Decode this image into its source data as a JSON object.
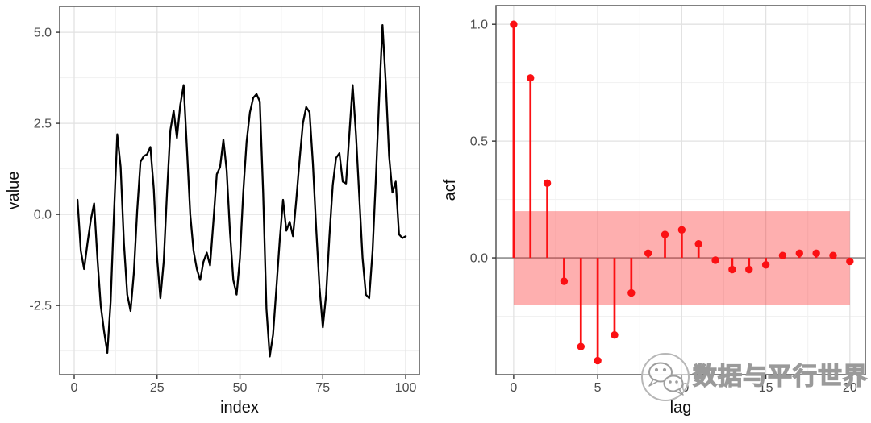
{
  "styles": {
    "background": "#ffffff",
    "panel_background": "#ffffff",
    "panel_border": "#565656",
    "grid_major": "#e2e2e2",
    "grid_minor": "#f1f1f1",
    "tick_mark_color": "#333333",
    "tick_label_color": "#4d4d4d",
    "axis_title_color": "#0d0d0d",
    "watermark_color": "#9a9a9a"
  },
  "watermark": {
    "icon": "wechat-logo-icon",
    "text": "数据与平行世界"
  },
  "chart_data": [
    {
      "id": "value-series",
      "type": "line",
      "title": "",
      "xlabel": "index",
      "ylabel": "value",
      "line_color": "#000000",
      "grid": true,
      "xlim": [
        -4.38,
        104.12
      ],
      "ylim": [
        -4.4,
        5.71
      ],
      "xticks": [
        0,
        25,
        50,
        75,
        100
      ],
      "xtick_labels": [
        "0",
        "25",
        "50",
        "75",
        "100"
      ],
      "xticks_minor": [
        12.5,
        37.5,
        62.5,
        87.5
      ],
      "yticks": [
        -2.5,
        0,
        2.5,
        5
      ],
      "ytick_labels": [
        "-2.5",
        "0.0",
        "2.5",
        "5.0"
      ],
      "yticks_minor": [
        -3.75,
        -1.25,
        1.25,
        3.75
      ],
      "x": [
        1,
        2,
        3,
        4,
        5,
        6,
        7,
        8,
        9,
        10,
        11,
        12,
        13,
        14,
        15,
        16,
        17,
        18,
        19,
        20,
        21,
        22,
        23,
        24,
        25,
        26,
        27,
        28,
        29,
        30,
        31,
        32,
        33,
        34,
        35,
        36,
        37,
        38,
        39,
        40,
        41,
        42,
        43,
        44,
        45,
        46,
        47,
        48,
        49,
        50,
        51,
        52,
        53,
        54,
        55,
        56,
        57,
        58,
        59,
        60,
        61,
        62,
        63,
        64,
        65,
        66,
        67,
        68,
        69,
        70,
        71,
        72,
        73,
        74,
        75,
        76,
        77,
        78,
        79,
        80,
        81,
        82,
        83,
        84,
        85,
        86,
        87,
        88,
        89,
        90,
        91,
        92,
        93,
        94,
        95,
        96,
        97,
        98,
        99,
        100
      ],
      "y": [
        0.4,
        -1.0,
        -1.5,
        -0.8,
        -0.15,
        0.3,
        -1.2,
        -2.5,
        -3.2,
        -3.8,
        -2.4,
        0.0,
        2.2,
        1.3,
        -0.8,
        -2.2,
        -2.65,
        -1.6,
        0.1,
        1.45,
        1.6,
        1.65,
        1.85,
        0.7,
        -1.2,
        -2.3,
        -1.3,
        0.6,
        2.3,
        2.85,
        2.1,
        3.0,
        3.55,
        1.8,
        0.0,
        -1.0,
        -1.5,
        -1.8,
        -1.3,
        -1.05,
        -1.4,
        -0.2,
        1.1,
        1.3,
        2.05,
        1.2,
        -0.5,
        -1.8,
        -2.2,
        -1.2,
        0.6,
        2.0,
        2.8,
        3.2,
        3.3,
        3.1,
        0.6,
        -2.6,
        -3.9,
        -3.3,
        -2.0,
        -0.7,
        0.4,
        -0.45,
        -0.2,
        -0.6,
        0.4,
        1.5,
        2.5,
        2.95,
        2.8,
        1.4,
        -0.4,
        -2.0,
        -3.1,
        -2.2,
        -0.6,
        0.8,
        1.55,
        1.68,
        0.9,
        0.85,
        2.2,
        3.55,
        2.2,
        0.5,
        -1.2,
        -2.2,
        -2.3,
        -1.0,
        1.0,
        3.2,
        5.2,
        3.6,
        1.6,
        0.6,
        0.9,
        -0.55,
        -0.65,
        -0.6
      ]
    },
    {
      "id": "acf",
      "type": "lollipop",
      "title": "",
      "xlabel": "lag",
      "ylabel": "acf",
      "stem_color": "#fb1013",
      "point_color": "#fb1013",
      "zero_line_color": "#7f7f7f",
      "band": {
        "xmin": 0,
        "xmax": 20,
        "ymin": -0.2,
        "ymax": 0.2,
        "color": "#fb2020",
        "opacity": 0.36
      },
      "grid": true,
      "xlim": [
        -1.05,
        20.92
      ],
      "ylim": [
        -0.5,
        1.08
      ],
      "xticks": [
        0,
        5,
        10,
        15,
        20
      ],
      "xtick_labels": [
        "0",
        "5",
        "10",
        "15",
        "20"
      ],
      "xticks_minor": [
        2.5,
        7.5,
        12.5,
        17.5
      ],
      "yticks": [
        0,
        0.5,
        1.0
      ],
      "ytick_labels": [
        "0.0",
        "0.5",
        "1.0"
      ],
      "yticks_minor": [
        -0.25,
        0.25,
        0.75
      ],
      "x": [
        0,
        1,
        2,
        3,
        4,
        5,
        6,
        7,
        8,
        9,
        10,
        11,
        12,
        13,
        14,
        15,
        16,
        17,
        18,
        19,
        20
      ],
      "y": [
        1.0,
        0.77,
        0.32,
        -0.1,
        -0.38,
        -0.44,
        -0.33,
        -0.15,
        0.02,
        0.1,
        0.12,
        0.06,
        -0.01,
        -0.05,
        -0.05,
        -0.03,
        0.01,
        0.02,
        0.02,
        0.01,
        -0.015
      ]
    }
  ]
}
